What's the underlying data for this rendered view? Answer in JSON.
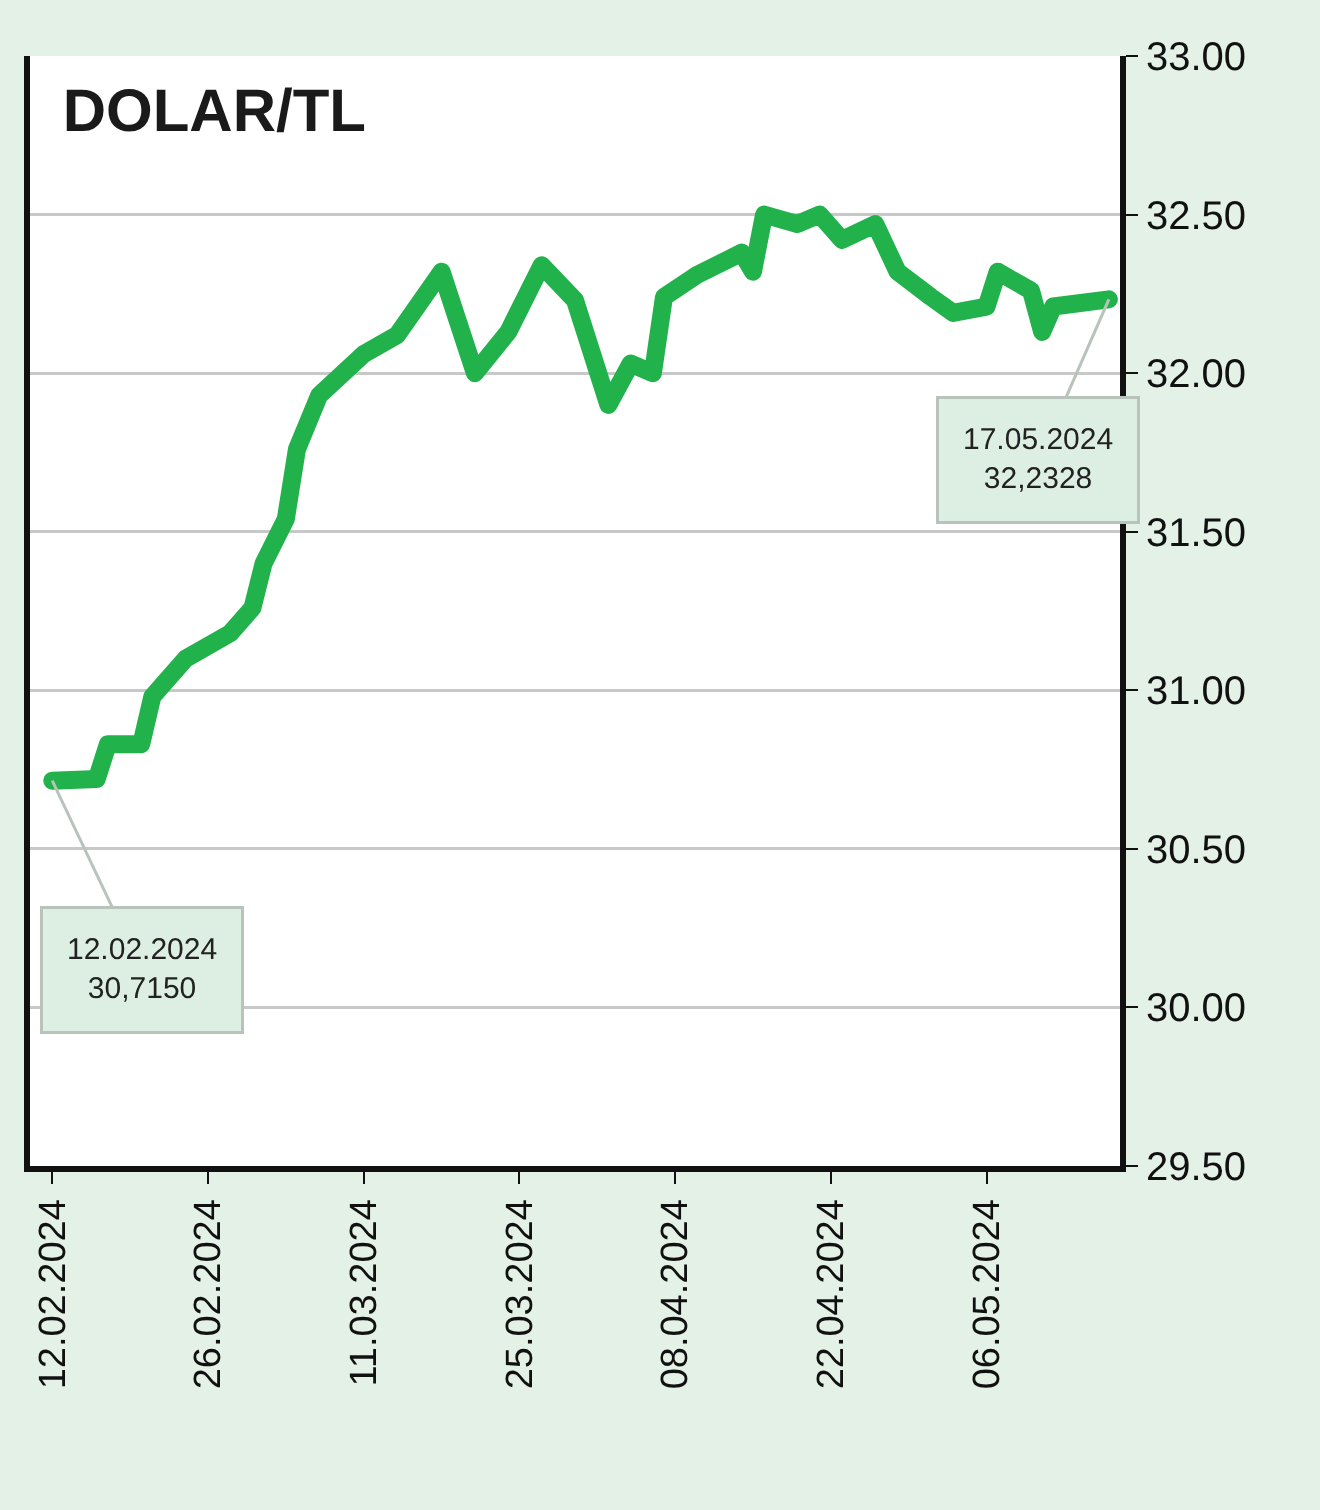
{
  "chart_data": {
    "type": "line",
    "title": "DOLAR/TL",
    "x": [
      "2024-02-12",
      "2024-02-16",
      "2024-02-17",
      "2024-02-20",
      "2024-02-21",
      "2024-02-24",
      "2024-02-28",
      "2024-03-01",
      "2024-03-02",
      "2024-03-04",
      "2024-03-05",
      "2024-03-07",
      "2024-03-11",
      "2024-03-14",
      "2024-03-18",
      "2024-03-21",
      "2024-03-24",
      "2024-03-27",
      "2024-03-30",
      "2024-04-02",
      "2024-04-04",
      "2024-04-06",
      "2024-04-07",
      "2024-04-10",
      "2024-04-14",
      "2024-04-15",
      "2024-04-16",
      "2024-04-19",
      "2024-04-21",
      "2024-04-23",
      "2024-04-26",
      "2024-04-28",
      "2024-05-01",
      "2024-05-03",
      "2024-05-06",
      "2024-05-07",
      "2024-05-10",
      "2024-05-11",
      "2024-05-12",
      "2024-05-17"
    ],
    "series": [
      {
        "color": "#22b24c",
        "values": [
          30.715,
          30.72,
          30.83,
          30.83,
          30.98,
          31.1,
          31.18,
          31.26,
          31.4,
          31.54,
          31.76,
          31.93,
          32.06,
          32.12,
          32.32,
          32.0,
          32.13,
          32.34,
          32.23,
          31.9,
          32.03,
          32.0,
          32.24,
          32.31,
          32.38,
          32.32,
          32.5,
          32.47,
          32.5,
          32.42,
          32.47,
          32.32,
          32.24,
          32.19,
          32.21,
          32.32,
          32.26,
          32.13,
          32.21,
          32.2328
        ]
      }
    ],
    "xlim": [
      "2024-02-10",
      "2024-05-18"
    ],
    "xticks": [
      {
        "value": "2024-02-12",
        "label": "12.02.2024"
      },
      {
        "value": "2024-02-26",
        "label": "26.02.2024"
      },
      {
        "value": "2024-03-11",
        "label": "11.03.2024"
      },
      {
        "value": "2024-03-25",
        "label": "25.03.2024"
      },
      {
        "value": "2024-04-08",
        "label": "08.04.2024"
      },
      {
        "value": "2024-04-22",
        "label": "22.04.2024"
      },
      {
        "value": "2024-05-06",
        "label": "06.05.2024"
      }
    ],
    "ylim": [
      29.5,
      33
    ],
    "yticks": [
      {
        "value": 29.5,
        "label": "29.50"
      },
      {
        "value": 30,
        "label": "30.00"
      },
      {
        "value": 30.5,
        "label": "30.50"
      },
      {
        "value": 31,
        "label": "31.00"
      },
      {
        "value": 31.5,
        "label": "31.50"
      },
      {
        "value": 32,
        "label": "32.00"
      },
      {
        "value": 32.5,
        "label": "32.50"
      },
      {
        "value": 33,
        "label": "33.00"
      }
    ],
    "grid": "y",
    "annotations": [
      {
        "text": "12.02.2024\n30,7150",
        "x": "2024-02-12",
        "y": 30.715
      },
      {
        "text": "17.05.2024\n32,2328",
        "x": "2024-05-17",
        "y": 32.2328
      }
    ]
  }
}
